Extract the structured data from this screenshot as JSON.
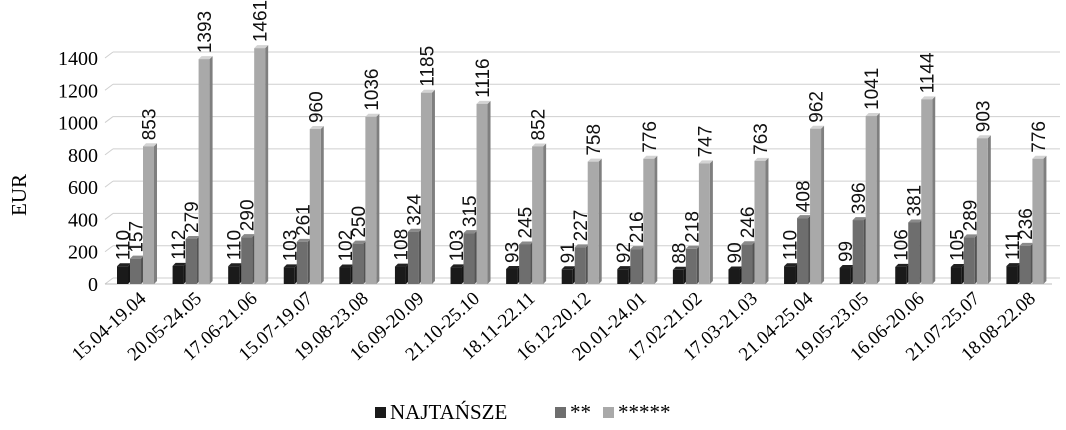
{
  "chart_data": {
    "type": "bar",
    "ylabel": "EUR",
    "xlabel": "",
    "ylim": [
      0,
      1400
    ],
    "yticks": [
      0,
      200,
      400,
      600,
      800,
      1000,
      1200,
      1400
    ],
    "grid": true,
    "style": "3d-clustered-columns",
    "legend_position": "bottom",
    "categories": [
      "15.04-19.04",
      "20.05-24.05",
      "17.06-21.06",
      "15.07-19.07",
      "19.08-23.08",
      "16.09-20.09",
      "21.10-25.10",
      "18.11-22.11",
      "16.12-20.12",
      "20.01-24.01",
      "17.02-21.02",
      "17.03-21.03",
      "21.04-25.04",
      "19.05-23.05",
      "16.06-20.06",
      "21.07-25.07",
      "18.08-22.08"
    ],
    "series": [
      {
        "name": "NAJTAŃSZE",
        "color": "#1a1a1a",
        "values": [
          110,
          112,
          110,
          103,
          102,
          108,
          103,
          93,
          91,
          92,
          88,
          90,
          110,
          99,
          106,
          105,
          111
        ]
      },
      {
        "name": "**",
        "color": "#6e6e6e",
        "values": [
          157,
          279,
          290,
          261,
          250,
          324,
          315,
          245,
          227,
          216,
          218,
          246,
          408,
          396,
          381,
          289,
          236
        ]
      },
      {
        "name": "*****",
        "color": "#a9a9a9",
        "values": [
          853,
          1393,
          1461,
          960,
          1036,
          1185,
          1116,
          852,
          758,
          776,
          747,
          763,
          962,
          1041,
          1144,
          903,
          776
        ]
      }
    ]
  }
}
